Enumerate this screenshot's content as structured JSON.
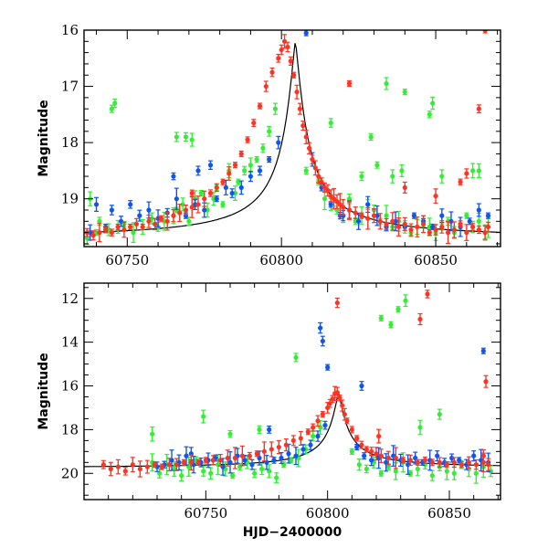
{
  "chart_data": [
    {
      "type": "scatter",
      "title": "",
      "xlabel": "",
      "ylabel": "Magnitude",
      "xlim": [
        60736,
        60871
      ],
      "ylim": [
        19.85,
        16.0
      ],
      "y_inverted": true,
      "grid": false,
      "legend": "none",
      "x_ticks": [
        60750,
        60800,
        60850
      ],
      "y_ticks": [
        16,
        17,
        18,
        19
      ],
      "colors": {
        "green": "#33ee33",
        "blue": "#1155ee",
        "red": "#ff3322",
        "model": "#000000"
      },
      "series": [
        {
          "color": "green",
          "x": [
            60737,
            60738,
            60740,
            60741,
            60744,
            60747,
            60749,
            60752,
            60755,
            60758,
            60760,
            60762,
            60765,
            60766,
            60768,
            60770,
            60772,
            60774,
            60776,
            60778,
            60779,
            60781,
            60783,
            60785,
            60786,
            60788,
            60790,
            60792,
            60794,
            60796,
            60798,
            60808,
            60812,
            60814,
            60816,
            60818,
            60820,
            60822,
            60824,
            60826,
            60828,
            60830,
            60832,
            60834,
            60836,
            60838,
            60840,
            60842,
            60844,
            60846,
            60848,
            60850,
            60852,
            60854,
            60856,
            60858,
            60860,
            60862,
            60864,
            60866,
            60867,
            60745,
            60746,
            60766,
            60769,
            60771,
            60816,
            60826,
            60829,
            60831,
            60839,
            60840,
            60848,
            60849,
            60852,
            60862,
            60864,
            60836,
            60834
          ],
          "y": [
            19.7,
            19.0,
            19.6,
            19.4,
            19.55,
            19.5,
            19.45,
            19.6,
            19.5,
            19.35,
            19.5,
            19.4,
            19.3,
            19.2,
            19.1,
            19.4,
            19.0,
            18.9,
            19.2,
            19.0,
            18.8,
            19.1,
            18.5,
            18.9,
            18.7,
            18.5,
            18.4,
            18.3,
            18.1,
            17.8,
            17.4,
            18.5,
            18.7,
            19.0,
            19.1,
            19.2,
            19.3,
            19.0,
            19.4,
            19.3,
            19.1,
            19.2,
            19.4,
            19.3,
            19.5,
            19.4,
            19.5,
            19.6,
            19.5,
            19.4,
            19.5,
            19.6,
            19.5,
            19.4,
            19.6,
            19.5,
            19.3,
            19.5,
            19.4,
            19.6,
            19.5,
            17.4,
            17.3,
            17.9,
            17.9,
            17.95,
            17.65,
            18.6,
            17.9,
            18.4,
            18.5,
            17.1,
            17.5,
            17.3,
            18.6,
            18.5,
            18.5,
            18.6,
            16.95
          ],
          "x_": []
        },
        {
          "color": "blue",
          "x": [
            60738,
            60740,
            60743,
            60745,
            60748,
            60751,
            60754,
            60757,
            60760,
            60763,
            60766,
            60769,
            60772,
            60775,
            60777,
            60779,
            60782,
            60784,
            60787,
            60790,
            60793,
            60796,
            60799,
            60810,
            60813,
            60816,
            60819,
            60822,
            60825,
            60828,
            60831,
            60834,
            60837,
            60840,
            60843,
            60846,
            60849,
            60852,
            60855,
            60858,
            60861,
            60864,
            60867,
            60765,
            60773,
            60808,
            60820
          ],
          "y": [
            19.6,
            19.1,
            19.5,
            19.2,
            19.4,
            19.1,
            19.3,
            19.2,
            19.35,
            19.25,
            19.0,
            19.3,
            19.1,
            19.2,
            18.4,
            19.0,
            18.8,
            18.9,
            18.8,
            18.6,
            18.5,
            18.3,
            18.0,
            18.3,
            18.8,
            19.1,
            19.3,
            19.2,
            19.4,
            19.1,
            19.3,
            19.5,
            19.4,
            19.5,
            19.3,
            19.4,
            19.5,
            19.3,
            19.4,
            19.5,
            19.4,
            19.2,
            19.3,
            18.6,
            18.5,
            16.05,
            19.3
          ]
        },
        {
          "color": "red",
          "x": [
            60737,
            60739,
            60741,
            60743,
            60745,
            60747,
            60749,
            60751,
            60753,
            60755,
            60757,
            60759,
            60761,
            60763,
            60765,
            60767,
            60769,
            60771,
            60773,
            60775,
            60777,
            60779,
            60781,
            60783,
            60785,
            60787,
            60789,
            60791,
            60793,
            60795,
            60797,
            60799,
            60800,
            60801,
            60802,
            60803,
            60804,
            60805,
            60806,
            60807,
            60808,
            60809,
            60810,
            60811,
            60812,
            60813,
            60814,
            60815,
            60816,
            60817,
            60818,
            60819,
            60820,
            60822,
            60824,
            60826,
            60828,
            60830,
            60832,
            60834,
            60836,
            60838,
            60840,
            60842,
            60844,
            60846,
            60848,
            60850,
            60852,
            60854,
            60856,
            60858,
            60860,
            60862,
            60864,
            60866,
            60867,
            60822,
            60850,
            60860,
            60866,
            60864,
            60858,
            60840,
            60771
          ],
          "y": [
            19.6,
            19.65,
            19.6,
            19.55,
            19.6,
            19.5,
            19.55,
            19.5,
            19.45,
            19.5,
            19.4,
            19.45,
            19.35,
            19.4,
            19.3,
            19.25,
            19.2,
            19.15,
            19.1,
            19.0,
            18.9,
            18.8,
            18.7,
            18.55,
            18.4,
            18.2,
            17.95,
            17.65,
            17.35,
            17.0,
            16.75,
            16.5,
            16.35,
            16.2,
            16.3,
            16.55,
            16.8,
            17.1,
            17.4,
            17.7,
            17.9,
            18.1,
            18.3,
            18.45,
            18.6,
            18.7,
            18.8,
            18.85,
            18.95,
            19.0,
            19.05,
            19.1,
            19.15,
            19.2,
            19.25,
            19.3,
            19.35,
            19.3,
            19.4,
            19.45,
            19.4,
            19.5,
            19.45,
            19.55,
            19.5,
            19.45,
            19.6,
            19.55,
            19.5,
            19.6,
            19.55,
            19.45,
            19.6,
            19.5,
            19.55,
            19.6,
            19.5,
            16.95,
            18.95,
            18.55,
            16.0,
            17.4,
            18.7,
            18.8,
            18.9
          ]
        }
      ]
    },
    {
      "type": "scatter",
      "title": "",
      "xlabel": "HJD−2400000",
      "ylabel": "Magnitude",
      "xlim": [
        60700,
        60871
      ],
      "ylim": [
        21.2,
        11.3
      ],
      "y_inverted": true,
      "grid": false,
      "legend": "none",
      "x_ticks": [
        60750,
        60800,
        60850
      ],
      "y_ticks": [
        12,
        14,
        16,
        18,
        20
      ],
      "colors": {
        "green": "#33ee33",
        "blue": "#1155ee",
        "red": "#ff3322",
        "model": "#000000"
      },
      "series": [
        {
          "color": "green",
          "x": [
            60728,
            60731,
            60734,
            60737,
            60740,
            60743,
            60746,
            60749,
            60752,
            60755,
            60758,
            60761,
            60764,
            60767,
            60770,
            60773,
            60776,
            60779,
            60782,
            60785,
            60788,
            60791,
            60794,
            60797,
            60810,
            60813,
            60816,
            60819,
            60822,
            60825,
            60828,
            60831,
            60834,
            60837,
            60840,
            60843,
            60846,
            60849,
            60852,
            60855,
            60858,
            60861,
            60864,
            60867,
            60728,
            60749,
            60787,
            60822,
            60826,
            60829,
            60832,
            60846,
            60838,
            60760,
            60772
          ],
          "y": [
            19.5,
            20.0,
            19.6,
            19.8,
            20.1,
            19.7,
            19.4,
            19.9,
            20.0,
            19.6,
            19.8,
            20.1,
            19.7,
            19.5,
            20.0,
            19.8,
            19.9,
            20.2,
            19.6,
            19.4,
            19.3,
            18.9,
            18.3,
            17.9,
            19.0,
            19.6,
            19.8,
            19.5,
            20.0,
            19.7,
            19.9,
            19.5,
            20.0,
            19.8,
            19.6,
            20.1,
            19.7,
            19.9,
            20.0,
            19.6,
            19.8,
            20.0,
            19.7,
            19.9,
            18.2,
            17.4,
            14.7,
            12.9,
            13.2,
            12.5,
            12.1,
            17.3,
            17.9,
            18.2,
            18.0
          ]
        },
        {
          "color": "blue",
          "x": [
            60730,
            60733,
            60736,
            60739,
            60742,
            60745,
            60748,
            60751,
            60754,
            60757,
            60760,
            60763,
            60766,
            60769,
            60772,
            60775,
            60778,
            60781,
            60784,
            60787,
            60790,
            60793,
            60796,
            60799,
            60812,
            60815,
            60818,
            60821,
            60824,
            60827,
            60830,
            60833,
            60836,
            60839,
            60842,
            60845,
            60848,
            60851,
            60854,
            60857,
            60860,
            60863,
            60866,
            60797,
            60798,
            60800,
            60814,
            60864,
            60744,
            60776
          ],
          "y": [
            19.7,
            19.6,
            19.4,
            19.5,
            19.2,
            19.6,
            19.5,
            19.4,
            19.3,
            19.7,
            19.5,
            19.2,
            19.4,
            19.6,
            19.3,
            19.5,
            19.4,
            19.3,
            19.1,
            19.2,
            18.9,
            18.7,
            18.3,
            17.8,
            18.8,
            19.2,
            19.4,
            19.3,
            19.5,
            19.2,
            19.4,
            19.6,
            19.3,
            19.5,
            19.4,
            19.2,
            19.5,
            19.3,
            19.4,
            19.6,
            19.2,
            19.4,
            19.5,
            13.35,
            13.95,
            15.15,
            16.0,
            14.4,
            19.1,
            18.0
          ]
        },
        {
          "color": "red",
          "x": [
            60708,
            60711,
            60714,
            60717,
            60720,
            60723,
            60726,
            60729,
            60732,
            60735,
            60738,
            60741,
            60744,
            60747,
            60750,
            60753,
            60756,
            60759,
            60762,
            60765,
            60768,
            60771,
            60774,
            60777,
            60780,
            60783,
            60786,
            60789,
            60792,
            60794,
            60796,
            60798,
            60800,
            60801,
            60802,
            60803,
            60804,
            60805,
            60806,
            60807,
            60808,
            60810,
            60812,
            60814,
            60816,
            60818,
            60820,
            60822,
            60825,
            60828,
            60831,
            60834,
            60837,
            60840,
            60843,
            60846,
            60849,
            60852,
            60855,
            60858,
            60861,
            60864,
            60866,
            60804,
            60821,
            60838,
            60841,
            60865,
            60864
          ],
          "y": [
            19.6,
            19.8,
            19.7,
            19.9,
            19.6,
            19.8,
            19.7,
            19.6,
            19.7,
            19.6,
            19.6,
            19.5,
            19.5,
            19.5,
            19.4,
            19.4,
            19.4,
            19.3,
            19.3,
            19.2,
            19.2,
            19.1,
            19.0,
            18.9,
            18.8,
            18.7,
            18.5,
            18.4,
            18.1,
            17.9,
            17.6,
            17.3,
            17.0,
            16.8,
            16.6,
            16.35,
            16.3,
            16.55,
            16.9,
            17.3,
            17.6,
            18.0,
            18.4,
            18.7,
            18.9,
            19.0,
            19.1,
            19.2,
            19.3,
            19.3,
            19.4,
            19.4,
            19.5,
            19.4,
            19.5,
            19.5,
            19.6,
            19.5,
            19.6,
            19.5,
            19.6,
            19.5,
            19.6,
            12.2,
            18.3,
            12.95,
            11.8,
            15.8,
            19.2
          ]
        }
      ]
    }
  ]
}
